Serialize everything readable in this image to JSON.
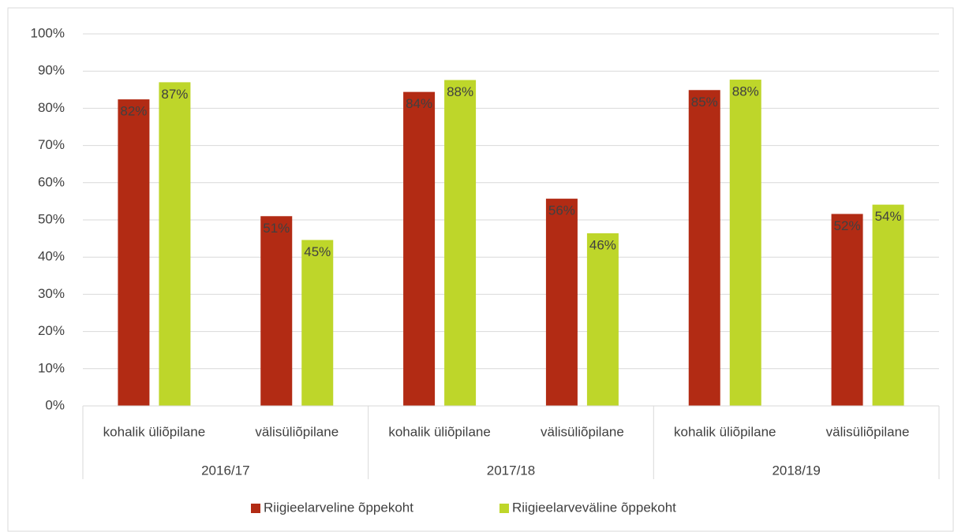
{
  "chart_data": {
    "type": "bar",
    "categories": [
      "kohalik üliõpilane",
      "välisüliõpilane",
      "kohalik üliõpilane",
      "välisüliõpilane",
      "kohalik üliõpilane",
      "välisüliõpilane"
    ],
    "groups": [
      "2016/17",
      "2017/18",
      "2018/19"
    ],
    "series": [
      {
        "name": "Riigieelarveline õppekoht",
        "color": "#b22b14",
        "values": [
          82.4,
          51.0,
          84.4,
          55.7,
          84.9,
          51.6
        ],
        "value_labels": [
          "82%",
          "51%",
          "84%",
          "56%",
          "85%",
          "52%"
        ]
      },
      {
        "name": "Riigieelarveväline õppekoht",
        "color": "#bed62a",
        "values": [
          87.0,
          44.6,
          87.6,
          46.4,
          87.7,
          54.1
        ],
        "value_labels": [
          "87%",
          "45%",
          "88%",
          "46%",
          "88%",
          "54%"
        ]
      }
    ],
    "ylim": [
      0,
      100
    ],
    "yticks": [
      {
        "value": 0,
        "label": "0%"
      },
      {
        "value": 10,
        "label": "10%"
      },
      {
        "value": 20,
        "label": "20%"
      },
      {
        "value": 30,
        "label": "30%"
      },
      {
        "value": 40,
        "label": "40%"
      },
      {
        "value": 50,
        "label": "50%"
      },
      {
        "value": 60,
        "label": "60%"
      },
      {
        "value": 70,
        "label": "70%"
      },
      {
        "value": 80,
        "label": "80%"
      },
      {
        "value": 90,
        "label": "90%"
      },
      {
        "value": 100,
        "label": "100%"
      }
    ],
    "grid": true,
    "legend": "bottom"
  }
}
